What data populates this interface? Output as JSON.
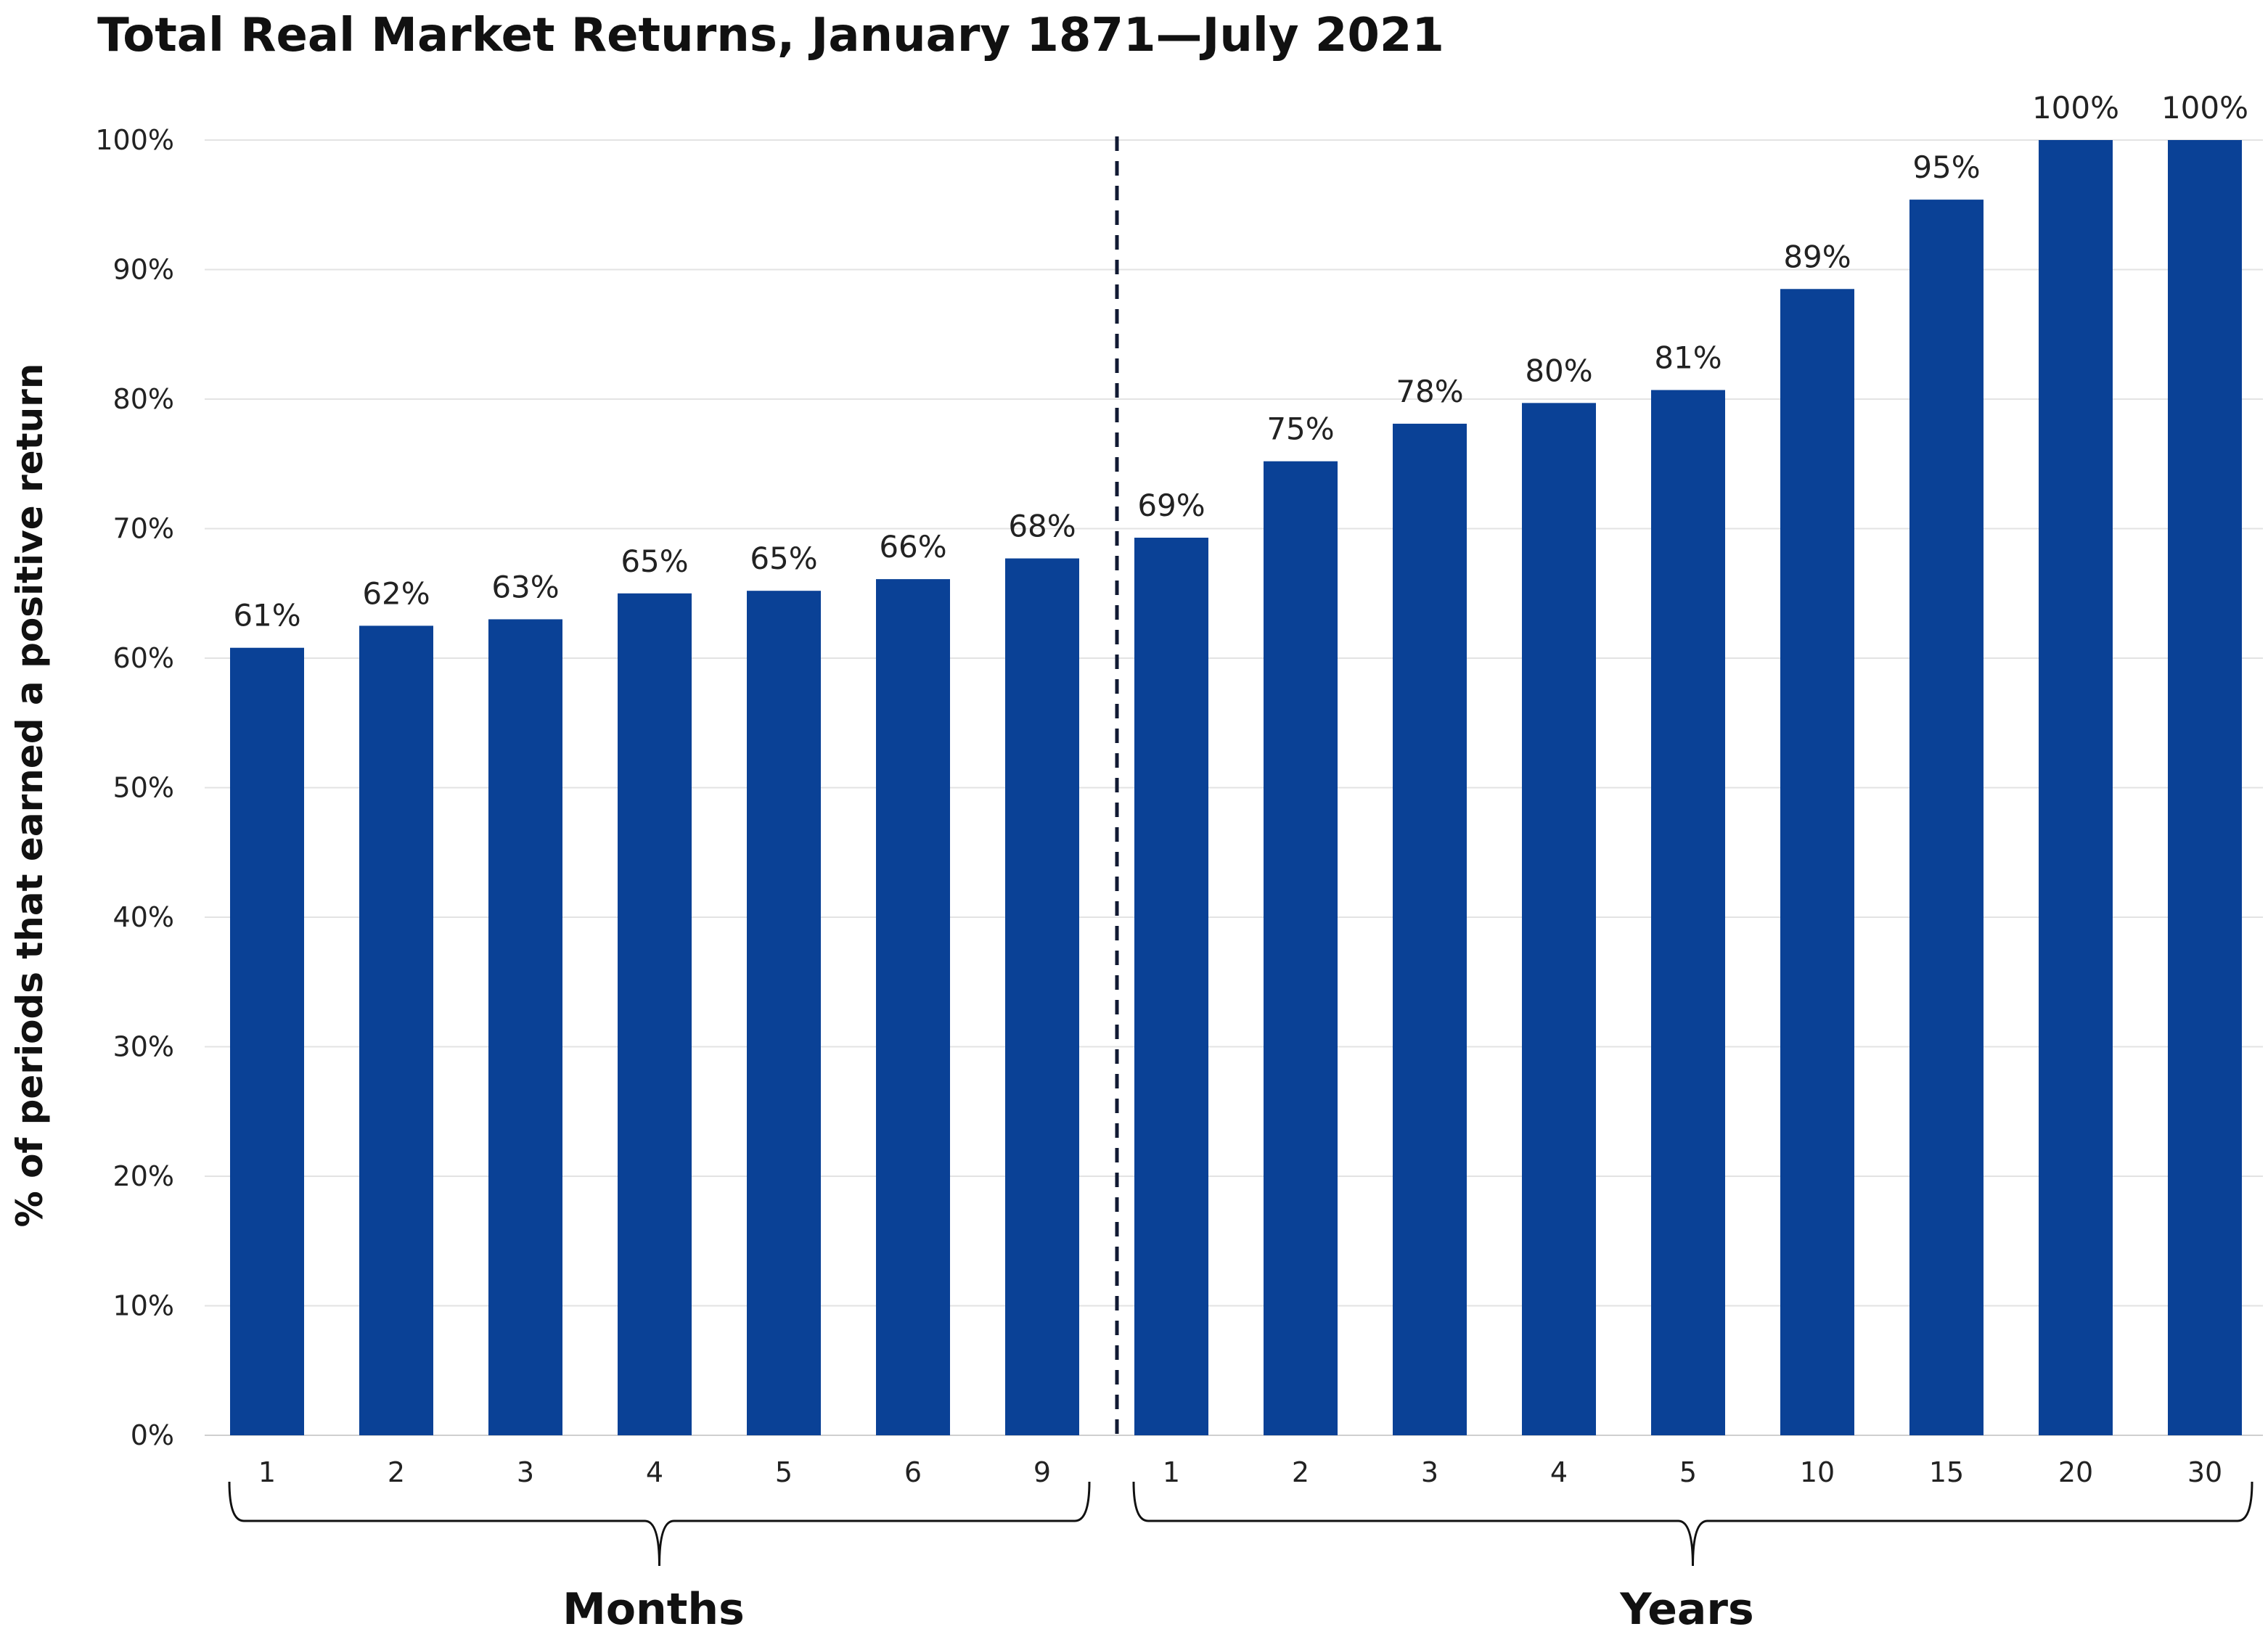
{
  "chart_data": {
    "type": "bar",
    "title": "Total Real Market Returns, January 1871—July 2021",
    "ylabel": "% of periods that earned a positive return",
    "xlabel": "",
    "ylim": [
      0,
      100
    ],
    "yticks": [
      "0%",
      "10%",
      "20%",
      "30%",
      "40%",
      "50%",
      "60%",
      "70%",
      "80%",
      "90%",
      "100%"
    ],
    "grid": true,
    "bar_color": "#0a4196",
    "groups": [
      {
        "label": "Months",
        "categories": [
          "1",
          "2",
          "3",
          "4",
          "5",
          "6",
          "9"
        ]
      },
      {
        "label": "Years",
        "categories": [
          "1",
          "2",
          "3",
          "4",
          "5",
          "10",
          "15",
          "20",
          "30"
        ]
      }
    ],
    "categories": [
      "1",
      "2",
      "3",
      "4",
      "5",
      "6",
      "9",
      "1",
      "2",
      "3",
      "4",
      "5",
      "10",
      "15",
      "20",
      "30"
    ],
    "values": [
      60.8,
      62.5,
      63.0,
      65.0,
      65.2,
      66.1,
      67.7,
      69.3,
      75.2,
      78.1,
      79.7,
      80.7,
      88.5,
      95.4,
      100,
      100
    ],
    "data_labels": [
      "61%",
      "62%",
      "63%",
      "65%",
      "65%",
      "66%",
      "68%",
      "69%",
      "75%",
      "78%",
      "80%",
      "81%",
      "89%",
      "95%",
      "100%",
      "100%"
    ]
  }
}
